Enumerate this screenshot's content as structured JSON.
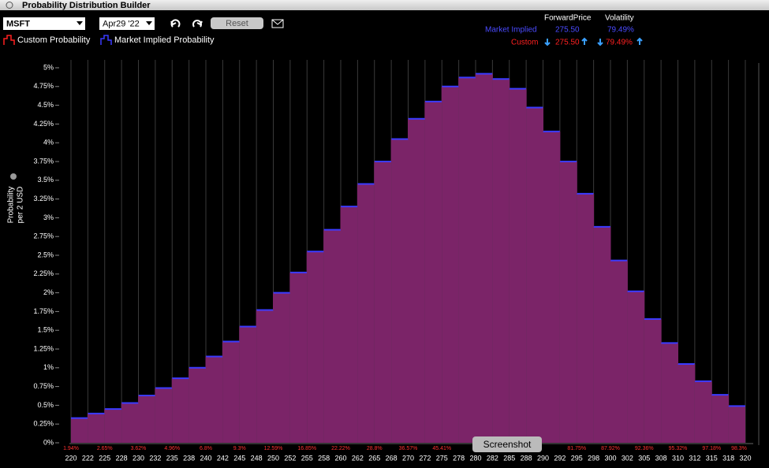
{
  "window_title": "Probability Distribution Builder",
  "toolbar": {
    "symbol": "MSFT",
    "expiry": "Apr29 '22",
    "reset": "Reset"
  },
  "summary": {
    "headers": [
      "ForwardPrice",
      "Volatility"
    ],
    "rows": [
      {
        "label": "Market Implied",
        "forward_price": "275.50",
        "volatility": "79.49%"
      },
      {
        "label": "Custom",
        "forward_price": "275.50",
        "volatility": "79.49%"
      }
    ]
  },
  "legend": [
    "Custom Probability",
    "Market Implied Probability"
  ],
  "tooltip": "Screenshot",
  "chart_data": {
    "type": "histogram",
    "ylabel": [
      "Probability",
      "per 2 USD"
    ],
    "bins": [
      220,
      222.5,
      225,
      227.5,
      230,
      232.5,
      235,
      237.5,
      240,
      242.5,
      245,
      247.5,
      250,
      252.5,
      255,
      257.5,
      260,
      262.5,
      265,
      267.5,
      270,
      272.5,
      275,
      277.5,
      280,
      282.5,
      285,
      287.5,
      290,
      292.5,
      295,
      297.5,
      300,
      302.5,
      305,
      307.5,
      310,
      312.5,
      315,
      317.5,
      320
    ],
    "values": [
      0.33,
      0.39,
      0.45,
      0.53,
      0.63,
      0.73,
      0.86,
      1.0,
      1.15,
      1.35,
      1.55,
      1.77,
      2.0,
      2.27,
      2.55,
      2.84,
      3.15,
      3.45,
      3.75,
      4.05,
      4.32,
      4.55,
      4.75,
      4.87,
      4.92,
      4.85,
      4.72,
      4.47,
      4.15,
      3.75,
      3.32,
      2.88,
      2.43,
      2.02,
      1.65,
      1.33,
      1.05,
      0.82,
      0.64,
      0.49
    ],
    "color": "#7b2468",
    "edge_color": "#3b3bff",
    "xlim": [
      220,
      320
    ],
    "xticks": [
      220,
      {
        "value": 222.5,
        "label": "222"
      },
      225,
      {
        "value": 227.5,
        "label": "228"
      },
      230,
      {
        "value": 232.5,
        "label": "232"
      },
      235,
      {
        "value": 237.5,
        "label": "238"
      },
      240,
      {
        "value": 242.5,
        "label": "242"
      },
      245,
      {
        "value": 247.5,
        "label": "248"
      },
      250,
      {
        "value": 252.5,
        "label": "252"
      },
      255,
      {
        "value": 257.5,
        "label": "258"
      },
      260,
      {
        "value": 262.5,
        "label": "262"
      },
      265,
      {
        "value": 267.5,
        "label": "268"
      },
      270,
      {
        "value": 272.5,
        "label": "272"
      },
      275,
      {
        "value": 277.5,
        "label": "278"
      },
      280,
      {
        "value": 282.5,
        "label": "282"
      },
      285,
      {
        "value": 287.5,
        "label": "288"
      },
      290,
      {
        "value": 292.5,
        "label": "292"
      },
      295,
      {
        "value": 297.5,
        "label": "298"
      },
      300,
      {
        "value": 302.5,
        "label": "302"
      },
      305,
      {
        "value": 307.5,
        "label": "308"
      },
      310,
      {
        "value": 312.5,
        "label": "312"
      },
      315,
      {
        "value": 317.5,
        "label": "318"
      },
      320
    ],
    "ylim": [
      0,
      5
    ],
    "yticks": [
      {
        "value": 0,
        "label": "0%"
      },
      {
        "value": 0.25,
        "label": "0.25%"
      },
      {
        "value": 0.5,
        "label": "0.5%"
      },
      {
        "value": 0.75,
        "label": "0.75%"
      },
      {
        "value": 1,
        "label": "1%"
      },
      {
        "value": 1.25,
        "label": "1.25%"
      },
      {
        "value": 1.5,
        "label": "1.5%"
      },
      {
        "value": 1.75,
        "label": "1.75%"
      },
      {
        "value": 2,
        "label": "2%"
      },
      {
        "value": 2.25,
        "label": "2.25%"
      },
      {
        "value": 2.5,
        "label": "2.5%"
      },
      {
        "value": 2.75,
        "label": "2.75%"
      },
      {
        "value": 3,
        "label": "3%"
      },
      {
        "value": 3.25,
        "label": "3.25%"
      },
      {
        "value": 3.5,
        "label": "3.5%"
      },
      {
        "value": 3.75,
        "label": "3.75%"
      },
      {
        "value": 4,
        "label": "4%"
      },
      {
        "value": 4.25,
        "label": "4.25%"
      },
      {
        "value": 4.5,
        "label": "4.5%"
      },
      {
        "value": 4.75,
        "label": "4.75%"
      },
      {
        "value": 5,
        "label": "5%"
      }
    ],
    "grid": true,
    "cumulative_labels": [
      "1.94%",
      "2.65%",
      "3.62%",
      "4.96%",
      "6.8%",
      "9.3%",
      "12.59%",
      "16.85%",
      "22.22%",
      "28.8%",
      "36.57%",
      "45.41%",
      null,
      null,
      null,
      "81.75%",
      "87.92%",
      "92.36%",
      "95.32%",
      "97.18%",
      "98.3%"
    ]
  }
}
